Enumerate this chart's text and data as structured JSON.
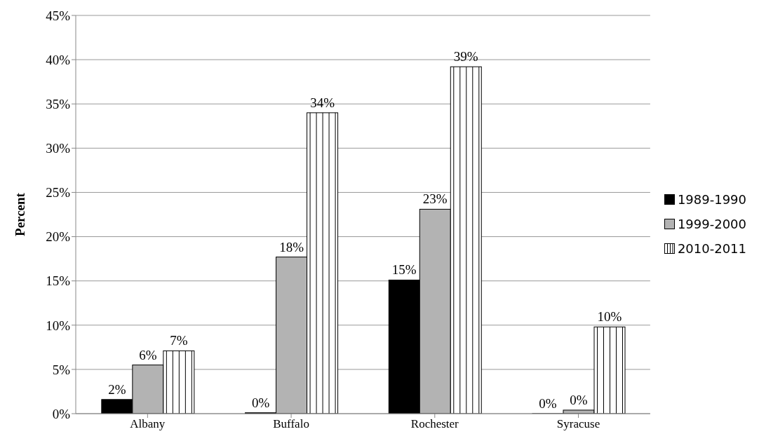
{
  "chart_data": {
    "type": "bar",
    "ylabel": "Percent",
    "categories": [
      "Albany",
      "Buffalo",
      "Rochester",
      "Syracuse"
    ],
    "series": [
      {
        "name": "1989-1990",
        "color": "#000000",
        "values": [
          1.6,
          0.1,
          15.1,
          0
        ],
        "value_labels": [
          "2%",
          "0%",
          "15%",
          "0%"
        ]
      },
      {
        "name": "1999-2000",
        "color": "#b3b3b3",
        "values": [
          5.5,
          17.7,
          23.1,
          0.4
        ],
        "value_labels": [
          "6%",
          "18%",
          "23%",
          "0%"
        ]
      },
      {
        "name": "2010-2011",
        "color": "#ffffff",
        "values": [
          7.1,
          34.0,
          39.2,
          9.8
        ],
        "value_labels": [
          "7%",
          "34%",
          "39%",
          "10%"
        ]
      }
    ],
    "ylim": [
      0,
      45
    ],
    "yticks": [
      {
        "value": 0,
        "label": "0%"
      },
      {
        "value": 5,
        "label": "5%"
      },
      {
        "value": 10,
        "label": "10%"
      },
      {
        "value": 15,
        "label": "15%"
      },
      {
        "value": 20,
        "label": "20%"
      },
      {
        "value": 25,
        "label": "25%"
      },
      {
        "value": 30,
        "label": "30%"
      },
      {
        "value": 35,
        "label": "35%"
      },
      {
        "value": 40,
        "label": "40%"
      },
      {
        "value": 45,
        "label": "45%"
      }
    ],
    "grid": "y",
    "legend": "right"
  }
}
